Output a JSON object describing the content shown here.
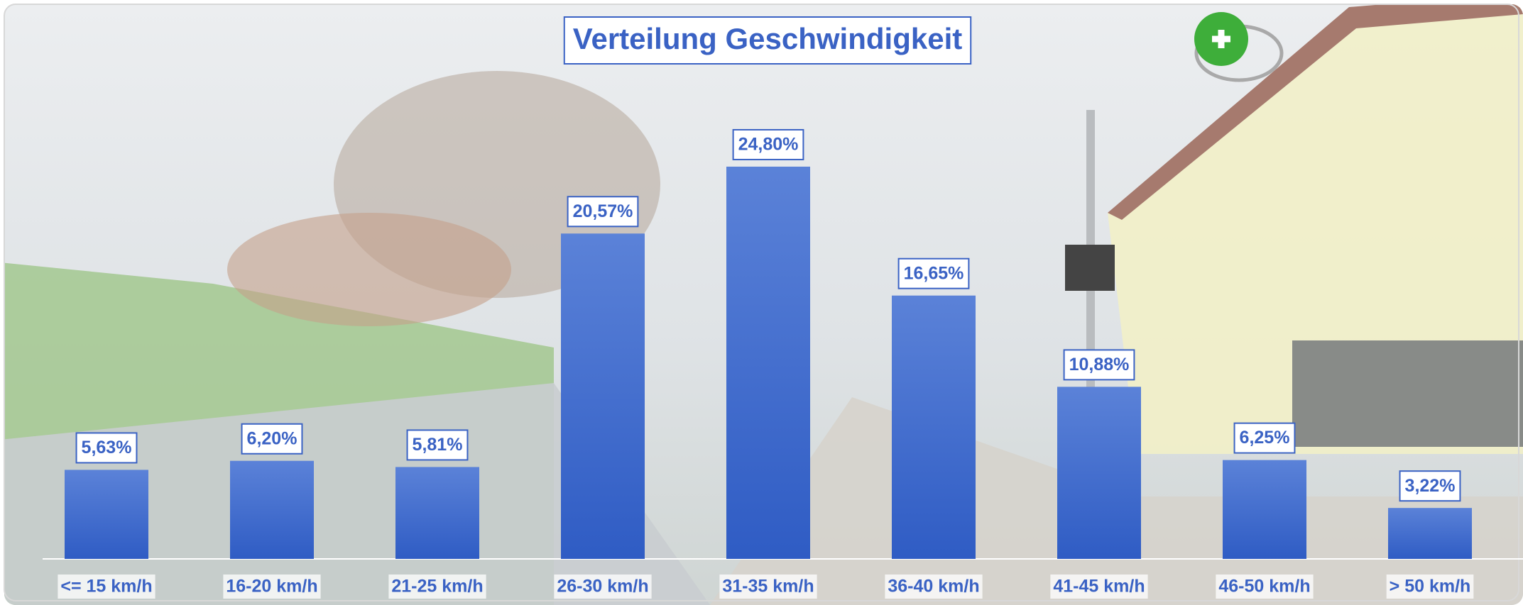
{
  "chart_data": {
    "type": "bar",
    "title": "Verteilung Geschwindigkeit",
    "categories": [
      "<= 15 km/h",
      "16-20 km/h",
      "21-25 km/h",
      "26-30 km/h",
      "31-35 km/h",
      "36-40 km/h",
      "41-45 km/h",
      "46-50 km/h",
      "> 50 km/h"
    ],
    "values": [
      5.63,
      6.2,
      5.81,
      20.57,
      24.8,
      16.65,
      10.88,
      6.25,
      3.22
    ],
    "value_labels": [
      "5,63%",
      "6,20%",
      "5,81%",
      "20,57%",
      "24,80%",
      "16,65%",
      "10,88%",
      "6,25%",
      "3,22%"
    ],
    "color": "#3d66cc"
  }
}
